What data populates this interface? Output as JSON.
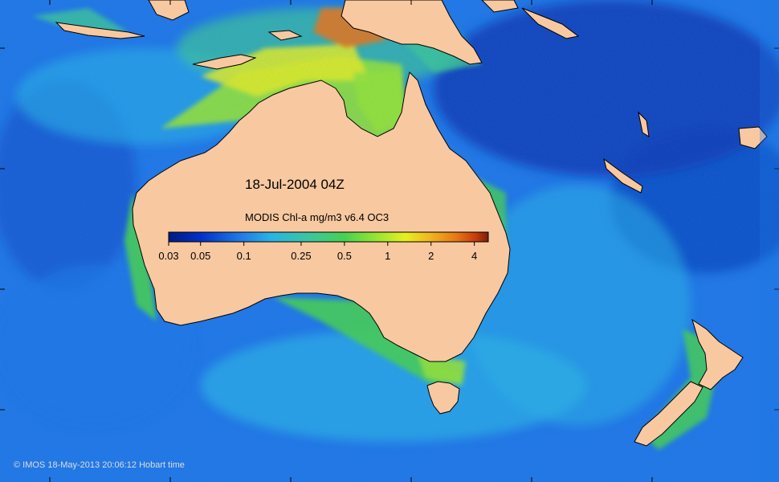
{
  "map": {
    "date_label": "18-Jul-2004 04Z",
    "colorbar": {
      "title": "MODIS Chl-a mg/m3 v6.4 OC3",
      "ticks": [
        "0.03",
        "0.05",
        "0.1",
        "0.25",
        "0.5",
        "1",
        "2",
        "4"
      ],
      "tick_values": [
        0.03,
        0.05,
        0.1,
        0.25,
        0.5,
        1,
        2,
        4
      ],
      "range": [
        0.03,
        5
      ],
      "scale": "log",
      "colors": [
        "#001c80",
        "#0030c8",
        "#1e78e6",
        "#28b4e6",
        "#3cc896",
        "#46d250",
        "#96e632",
        "#e6f01e",
        "#f0b41e",
        "#e67814",
        "#c83c0a",
        "#781e0a"
      ]
    },
    "credit": "© IMOS 18-May-2013 20:06:12 Hobart time",
    "colors": {
      "land": "#f8c8a0",
      "coast": "#000000",
      "open_ocean": "#1e78e6",
      "deep_ocean": "#0a3cb4",
      "shelf_high": "#e6f01e",
      "coastal_bloom": "#c83c0a"
    }
  }
}
